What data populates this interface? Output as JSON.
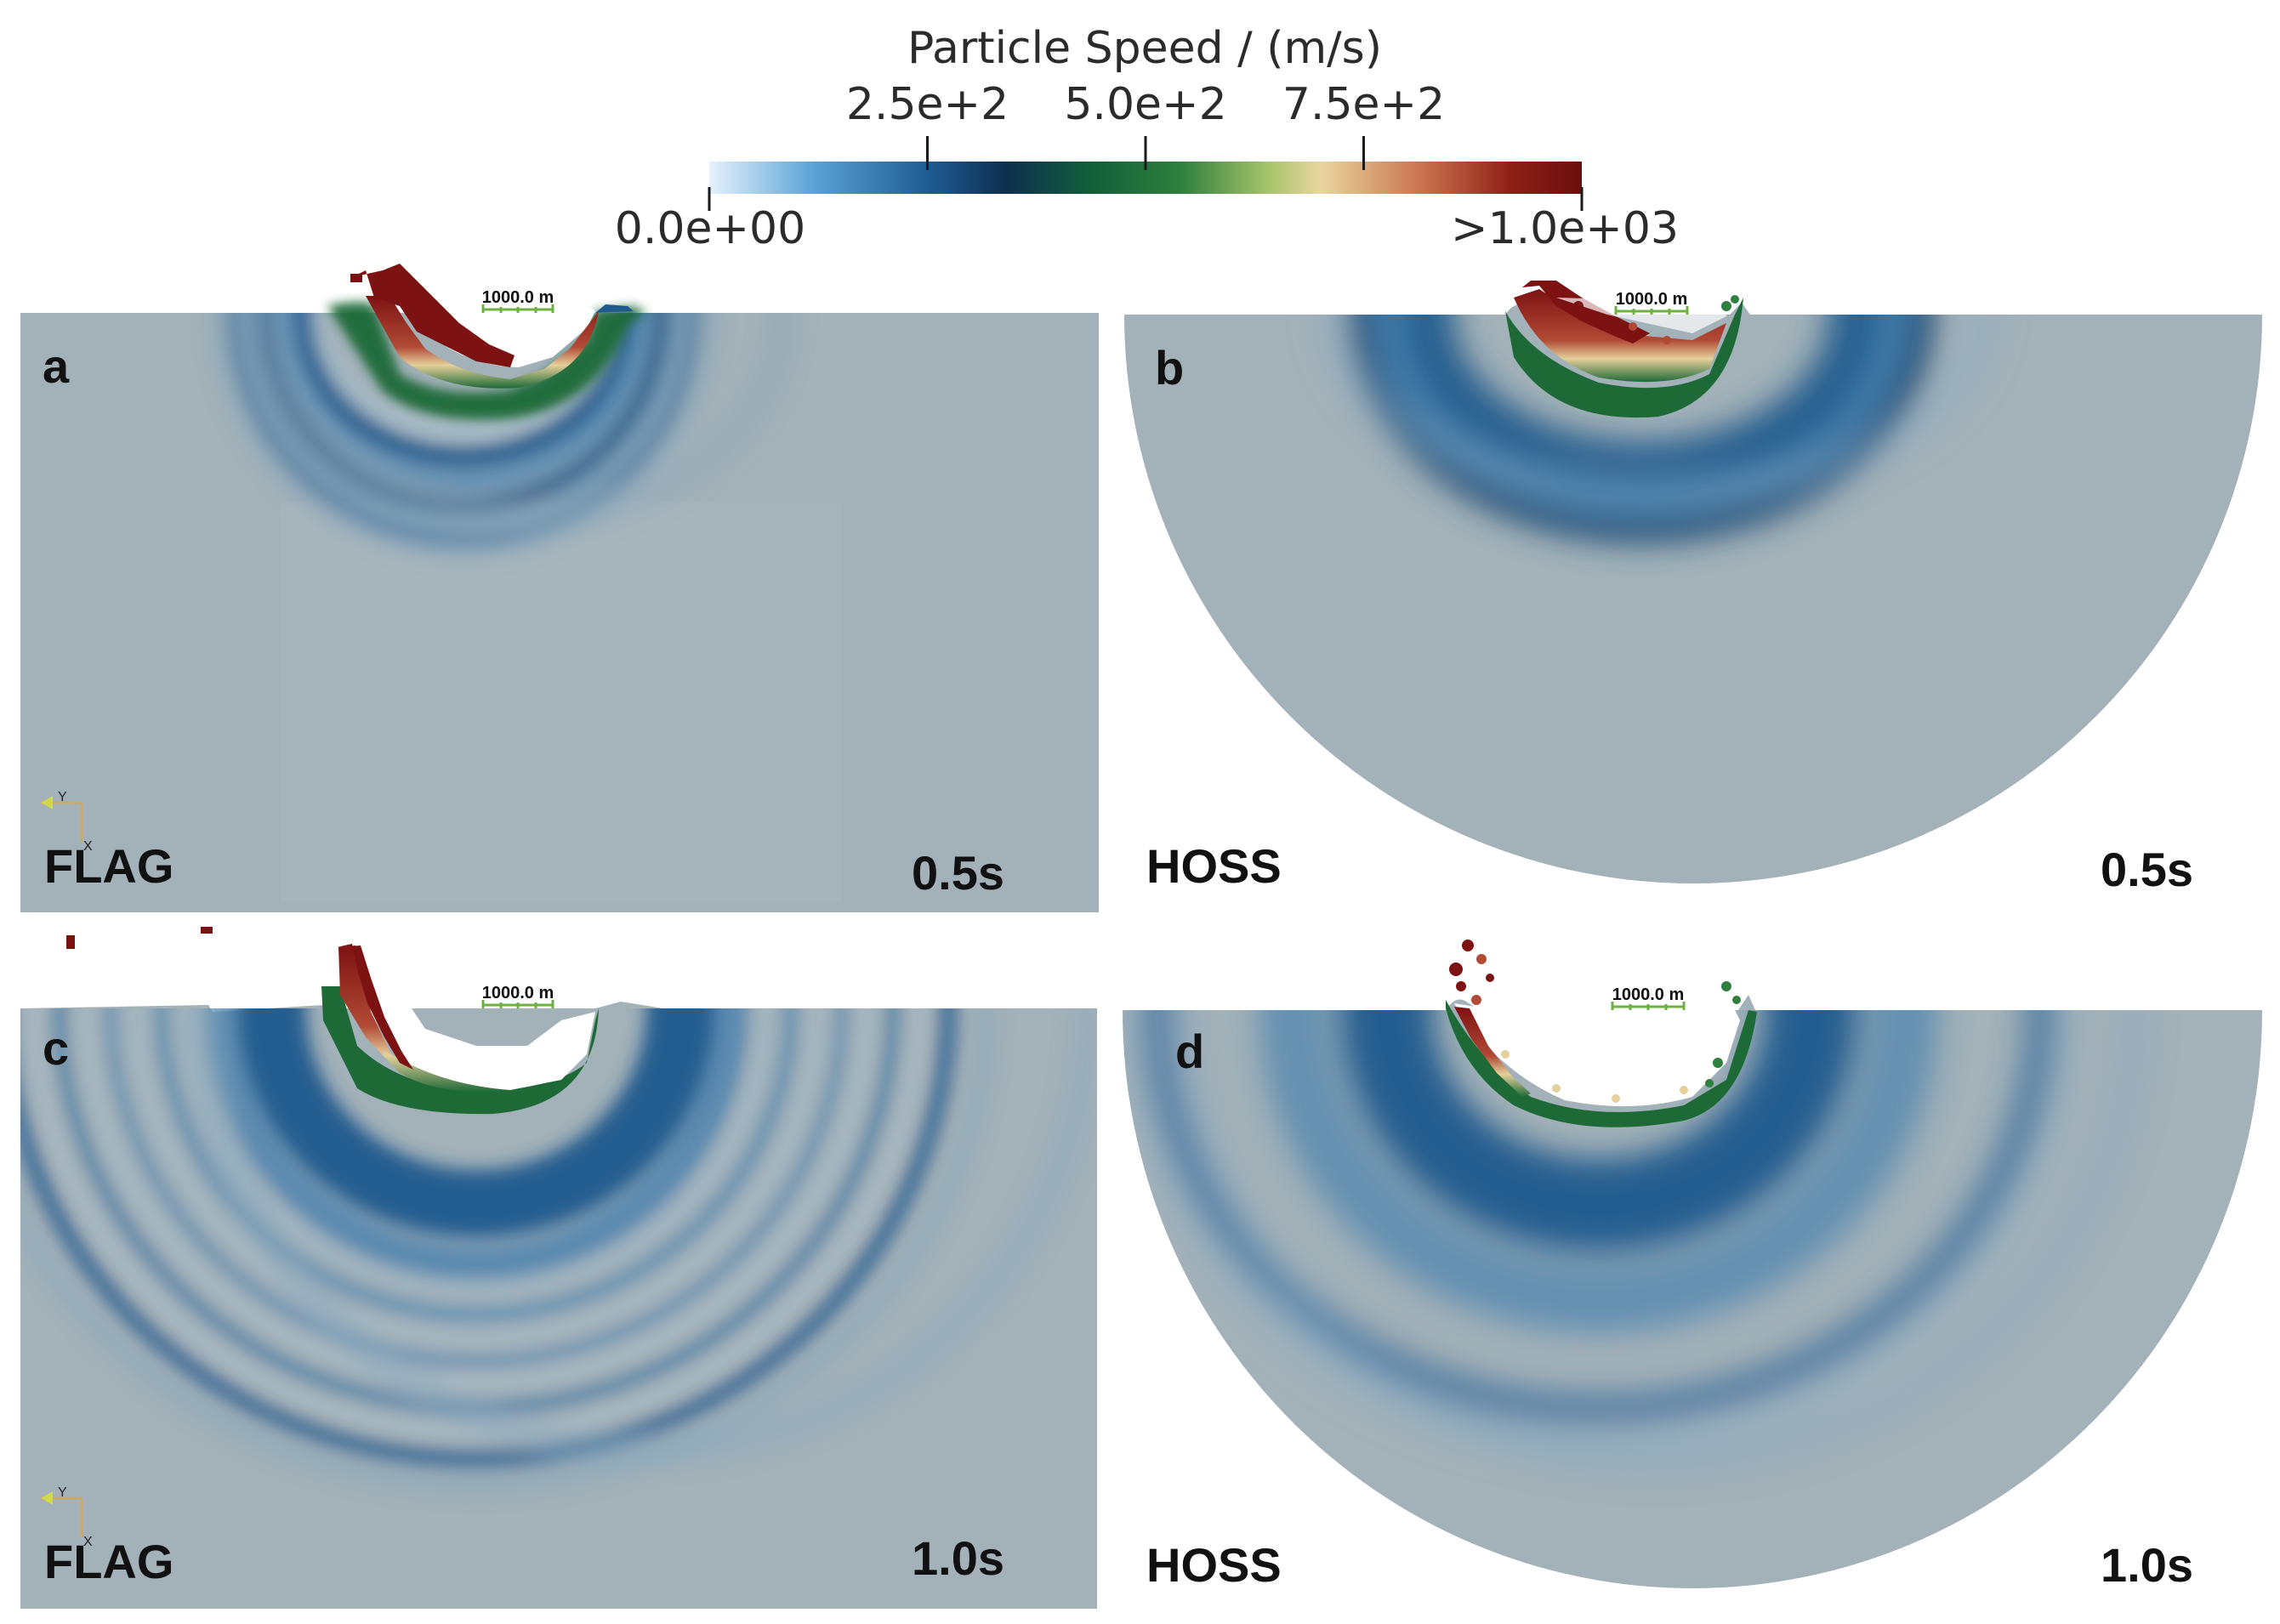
{
  "colorbar": {
    "title": "Particle Speed / (m/s)",
    "tick_top": [
      "2.5e+2",
      "5.0e+2",
      "7.5e+2"
    ],
    "min_label": "0.0e+00",
    "max_label": ">1.0e+03",
    "range": [
      0,
      1000
    ],
    "ticks": [
      250,
      500,
      750
    ],
    "stops": [
      {
        "v": 0,
        "color": "#e6f2fb"
      },
      {
        "v": 120,
        "color": "#5aa2d6"
      },
      {
        "v": 250,
        "color": "#1f5c94"
      },
      {
        "v": 340,
        "color": "#0e2f4f"
      },
      {
        "v": 440,
        "color": "#12603a"
      },
      {
        "v": 540,
        "color": "#2f7f3e"
      },
      {
        "v": 640,
        "color": "#a6c36a"
      },
      {
        "v": 700,
        "color": "#e9d6a0"
      },
      {
        "v": 820,
        "color": "#c8704d"
      },
      {
        "v": 920,
        "color": "#8d1f16"
      },
      {
        "v": 1000,
        "color": "#6b0f0f"
      }
    ]
  },
  "colors": {
    "background_medium": "#a3b1b8",
    "wave_dark": "#184d7c",
    "wave_mid": "#3a79ab",
    "front_green": "#1e6a37",
    "front_cream": "#e5cf9a",
    "front_red": "#7d1212",
    "scalebar": "#6fb042"
  },
  "panels": [
    {
      "id": "a",
      "letter": "a",
      "method": "FLAG",
      "time": "0.5s",
      "scale": "1000.0 m"
    },
    {
      "id": "b",
      "letter": "b",
      "method": "HOSS",
      "time": "0.5s",
      "scale": "1000.0 m"
    },
    {
      "id": "c",
      "letter": "c",
      "method": "FLAG",
      "time": "1.0s",
      "scale": "1000.0 m"
    },
    {
      "id": "d",
      "letter": "d",
      "method": "HOSS",
      "time": "1.0s",
      "scale": "1000.0 m"
    }
  ]
}
